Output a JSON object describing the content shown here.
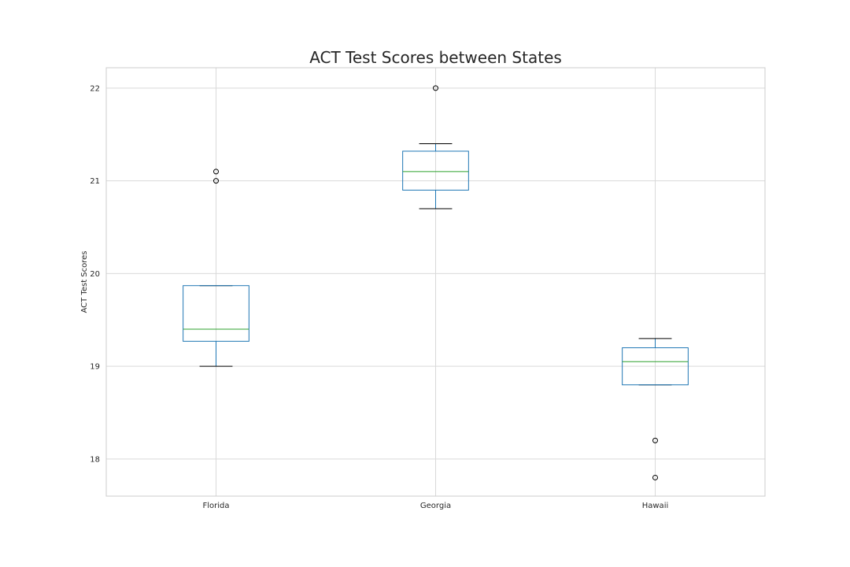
{
  "chart_data": {
    "type": "box",
    "title": "ACT Test Scores between States",
    "xlabel": "",
    "ylabel": "ACT Test Scores",
    "ylim": [
      17.6,
      22.22
    ],
    "yticks": [
      18,
      19,
      20,
      21,
      22
    ],
    "grid": true,
    "colors": {
      "box": "#1f77b4",
      "median": "#2ca02c",
      "whisker": "#1f77b4",
      "cap": "#000000",
      "flier": "#000000",
      "grid": "#d9d9d9",
      "spine": "#cccccc"
    },
    "categories": [
      "Florida",
      "Georgia",
      "Hawaii"
    ],
    "boxes": [
      {
        "name": "Florida",
        "whislo": 19.0,
        "q1": 19.27,
        "med": 19.4,
        "q3": 19.87,
        "whishi": 19.87,
        "fliers": [
          21.0,
          21.1
        ]
      },
      {
        "name": "Georgia",
        "whislo": 20.7,
        "q1": 20.9,
        "med": 21.1,
        "q3": 21.32,
        "whishi": 21.4,
        "fliers": [
          22.0
        ]
      },
      {
        "name": "Hawaii",
        "whislo": 18.8,
        "q1": 18.8,
        "med": 19.05,
        "q3": 19.2,
        "whishi": 19.3,
        "fliers": [
          18.2,
          17.8
        ]
      }
    ]
  }
}
